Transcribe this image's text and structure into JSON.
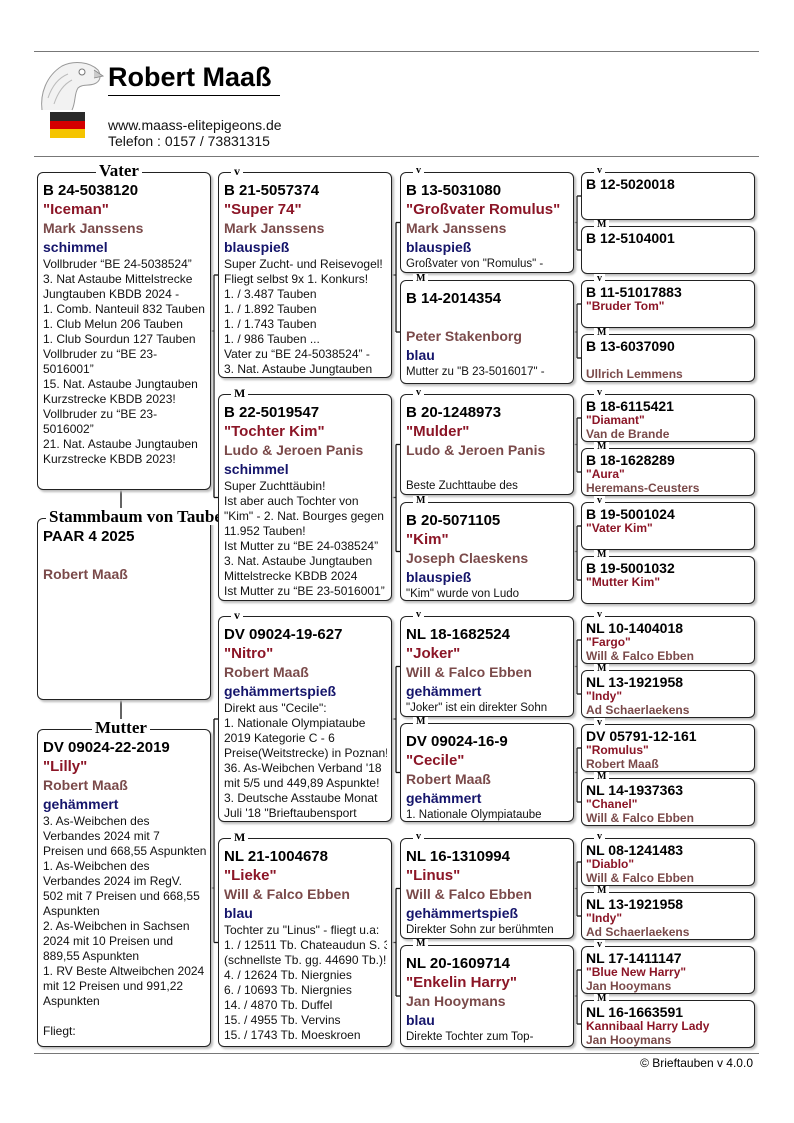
{
  "header": {
    "title": "Robert Maaß",
    "website": "www.maass-elitepigeons.de",
    "phone": "Telefon : 0157 / 73831315",
    "flag_colors": [
      "#000000",
      "#dd0000",
      "#ffce00"
    ]
  },
  "footer": "© Brieftauben v 4.0.0",
  "colors": {
    "name": "#8b1526",
    "breeder": "#7a4a4a",
    "color": "#15156b"
  },
  "labels": {
    "father": "Vater",
    "mother": "Mutter",
    "subject": "Stammbaum von Taube",
    "v": "v",
    "m": "M"
  },
  "subject": {
    "ring": "PAAR 4 2025",
    "name": "",
    "breeder": "Robert Maaß"
  },
  "gen1": [
    {
      "ring": "B 24-5038120",
      "name": "\"Iceman\"",
      "breeder": "Mark Janssens",
      "color": "schimmel",
      "notes": [
        "Vollbruder “BE 24-5038524”",
        "3. Nat Astaube Mittelstrecke",
        "Jungtauben KBDB 2024 -",
        "1. Comb. Nanteuil 832 Tauben",
        "1. Club Melun 206 Tauben",
        "1. Club Sourdun 127 Tauben",
        "Vollbruder zu “BE 23-",
        "5016001”",
        "15. Nat. Astaube Jungtauben",
        "Kurzstrecke KBDB 2023!",
        "Vollbruder zu “BE 23-",
        "5016002”",
        "21. Nat. Astaube Jungtauben",
        "Kurzstrecke KBDB 2023!"
      ]
    },
    {
      "ring": "DV 09024-22-2019",
      "name": "\"Lilly\"",
      "breeder": "Robert Maaß",
      "color": "gehämmert",
      "notes": [
        "3. As-Weibchen des",
        "Verbandes 2024 mit 7",
        "Preisen und 668,55 Aspunkten",
        "1. As-Weibchen des",
        "Verbandes 2024 im RegV.",
        "502 mit 7 Preisen und 668,55",
        "Aspunkten",
        "2. As-Weibchen in Sachsen",
        "2024 mit 10 Preisen und",
        "889,55 Aspunkten",
        "1. RV Beste Altweibchen 2024",
        "mit 12 Preisen und 991,22",
        "Aspunkten",
        "",
        "Fliegt:"
      ]
    }
  ],
  "gen2": [
    {
      "ring": "B 21-5057374",
      "name": "\"Super 74\"",
      "breeder": "Mark Janssens",
      "color": "blauspieß",
      "notes": [
        "Super Zucht- und Reisevogel!",
        "Fliegt selbst 9x 1. Konkurs!",
        "1. / 3.487 Tauben",
        "1. / 1.892 Tauben",
        "1. / 1.743 Tauben",
        "1. / 986 Tauben ...",
        "Vater zu “BE 24-5038524” -",
        "3.  Nat. Astaube Jungtauben"
      ]
    },
    {
      "ring": "B 22-5019547",
      "name": "\"Tochter Kim\"",
      "breeder": "Ludo & Jeroen Panis",
      "color": "schimmel",
      "notes": [
        "Super Zuchttäubin!",
        "Ist aber auch Tochter von",
        "\"Kim\" - 2. Nat. Bourges gegen",
        "11.952 Tauben!",
        "Ist Mutter zu “BE 24-038524”",
        "3. Nat. Astaube Jungtauben",
        "Mittelstrecke KBDB 2024",
        "Ist Mutter zu “BE 23-5016001” -"
      ]
    },
    {
      "ring": "DV 09024-19-627",
      "name": "\"Nitro\"",
      "breeder": "Robert Maaß",
      "color": "gehämmertspieß",
      "notes": [
        "Direkt aus \"Cecile\":",
        "1. Nationale Olympiataube",
        "2019 Kategorie C - 6",
        "Preise(Weitstrecke) in Poznan!",
        "36. As-Weibchen Verband '18",
        "mit 5/5 und 449,89 Aspunkte!",
        "3. Deutsche  Asstaube Monat",
        "Juli '18 \"Brieftaubensport"
      ]
    },
    {
      "ring": "NL 21-1004678",
      "name": "\"Lieke\"",
      "breeder": "Will & Falco Ebben",
      "color": "blau",
      "notes": [
        "Tochter zu \"Linus\" -  fliegt u.a:",
        "1. / 12511 Tb. Chateaudun S. 3",
        "(schnellste Tb. gg. 44690 Tb.)!",
        "4. / 12624 Tb. Niergnies",
        "6. / 10693 Tb. Niergnies",
        "14. / 4870 Tb. Duffel",
        "15. / 4955 Tb. Vervins",
        "15. / 1743 Tb. Moeskroen"
      ]
    }
  ],
  "gen3": [
    {
      "ring": "B 13-5031080",
      "name": "\"Großvater Romulus\"",
      "breeder": "Mark Janssens",
      "color": "blauspieß",
      "notes": [
        "Großvater von \"Romulus\" -"
      ]
    },
    {
      "ring": "B 14-2014354",
      "name": "",
      "breeder": "Peter Stakenborg",
      "color": "blau",
      "notes": [
        "Mutter zu \"B 23-5016017\" -"
      ]
    },
    {
      "ring": "B 20-1248973",
      "name": "\"Mulder\"",
      "breeder": "Ludo & Jeroen Panis",
      "color": "",
      "notes": [
        "Beste Zuchttaube des"
      ]
    },
    {
      "ring": "B 20-5071105",
      "name": "\"Kim\"",
      "breeder": "Joseph Claeskens",
      "color": "blauspieß",
      "notes": [
        "\"Kim\" wurde von Ludo"
      ]
    },
    {
      "ring": "NL 18-1682524",
      "name": "\"Joker\"",
      "breeder": "Will & Falco Ebben",
      "color": "gehämmert",
      "notes": [
        "\"Joker\" ist ein direkter Sohn"
      ]
    },
    {
      "ring": "DV 09024-16-9",
      "name": "\"Cecile\"",
      "breeder": "Robert Maaß",
      "color": "gehämmert",
      "notes": [
        "1. Nationale Olympiataube"
      ]
    },
    {
      "ring": "NL 16-1310994",
      "name": "\"Linus\"",
      "breeder": "Will & Falco Ebben",
      "color": "gehämmertspieß",
      "notes": [
        "Direkter Sohn zur berühmten"
      ]
    },
    {
      "ring": "NL 20-1609714",
      "name": "\"Enkelin Harry\"",
      "breeder": "Jan Hooymans",
      "color": "blau",
      "notes": [
        "Direkte Tochter zum Top-"
      ]
    }
  ],
  "gen4": [
    {
      "ring": "B 12-5020018",
      "name": "",
      "breeder": ""
    },
    {
      "ring": "B 12-5104001",
      "name": "",
      "breeder": ""
    },
    {
      "ring": "B 11-51017883",
      "name": "\"Bruder Tom\"",
      "breeder": ""
    },
    {
      "ring": "B 13-6037090",
      "name": "",
      "breeder": "Ullrich Lemmens"
    },
    {
      "ring": "B 18-6115421",
      "name": "\"Diamant\"",
      "breeder": "Van de Brande"
    },
    {
      "ring": "B 18-1628289",
      "name": "\"Aura\"",
      "breeder": "Heremans-Ceusters"
    },
    {
      "ring": "B 19-5001024",
      "name": "\"Vater Kim\"",
      "breeder": ""
    },
    {
      "ring": "B 19-5001032",
      "name": "\"Mutter Kim\"",
      "breeder": ""
    },
    {
      "ring": "NL 10-1404018",
      "name": "\"Fargo\"",
      "breeder": "Will & Falco Ebben"
    },
    {
      "ring": "NL 13-1921958",
      "name": "\"Indy\"",
      "breeder": "Ad Schaerlaekens"
    },
    {
      "ring": "DV 05791-12-161",
      "name": "\"Romulus\"",
      "breeder": "Robert Maaß"
    },
    {
      "ring": "NL 14-1937363",
      "name": "\"Chanel\"",
      "breeder": "Will & Falco Ebben"
    },
    {
      "ring": "NL 08-1241483",
      "name": "\"Diablo\"",
      "breeder": "Will & Falco Ebben"
    },
    {
      "ring": "NL 13-1921958",
      "name": "\"Indy\"",
      "breeder": "Ad Schaerlaekens"
    },
    {
      "ring": "NL 17-1411147",
      "name": "\"Blue New Harry\"",
      "breeder": "Jan Hooymans"
    },
    {
      "ring": "NL 16-1663591",
      "name": "Kannibaal Harry Lady",
      "breeder": "Jan Hooymans"
    }
  ]
}
